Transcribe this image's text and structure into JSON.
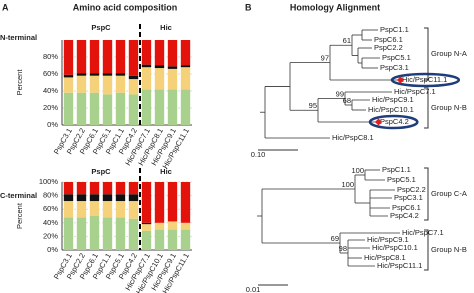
{
  "panel_a": {
    "label": "A",
    "title": "Amino acid composition",
    "charts": [
      {
        "type": "bar",
        "stacked": true,
        "row_label": "N-terminal",
        "y_label": "Percent",
        "groups": [
          "PspC",
          "Hic"
        ],
        "categories": [
          "PspC3.1",
          "PspC2.2",
          "PspC6.1",
          "PspC5.1",
          "PspC1.1",
          "PspC4.2",
          "Hic/PspC7.1",
          "Hic/PspC8.1",
          "Hic/PspC9.1",
          "Hic/PspC11.1"
        ],
        "series": [
          {
            "color": "#a9d18e",
            "values": [
              38,
              38,
              38,
              36,
              38,
              36,
              42,
              42,
              42,
              42
            ]
          },
          {
            "color": "#f5d27a",
            "values": [
              18,
              20,
              20,
              22,
              20,
              18,
              26,
              25,
              24,
              26
            ]
          },
          {
            "color": "#111111",
            "values": [
              3,
              3,
              3,
              3,
              3,
              4,
              3,
              3,
              3,
              2
            ]
          },
          {
            "color": "#e3120b",
            "values": [
              41,
              39,
              39,
              39,
              39,
              42,
              29,
              30,
              31,
              30
            ]
          }
        ],
        "ylim": [
          0,
          100
        ],
        "yticks": [
          {
            "value": 0,
            "label": "0%"
          },
          {
            "value": 20,
            "label": "20%"
          },
          {
            "value": 40,
            "label": "40%"
          },
          {
            "value": 60,
            "label": "60%"
          },
          {
            "value": 80,
            "label": "80%"
          }
        ]
      },
      {
        "type": "bar",
        "stacked": true,
        "row_label": "C-terminal",
        "y_label": "Percent",
        "groups": [
          "PspC",
          "Hic"
        ],
        "categories": [
          "PspC3.1",
          "PspC2.2",
          "PspC6.1",
          "PspC1.1",
          "PspC5.1",
          "PspC4.2",
          "Hic/PspC7.1",
          "Hic/PspC10.1",
          "Hic/PspC9.1",
          "Hic/PspC11.1"
        ],
        "series": [
          {
            "color": "#a9d18e",
            "values": [
              48,
              48,
              50,
              48,
              48,
              46,
              28,
              30,
              30,
              30
            ]
          },
          {
            "color": "#f5d27a",
            "values": [
              24,
              24,
              22,
              24,
              24,
              26,
              10,
              10,
              12,
              10
            ]
          },
          {
            "color": "#111111",
            "values": [
              10,
              10,
              10,
              10,
              10,
              10,
              2,
              0,
              0,
              0
            ]
          },
          {
            "color": "#e3120b",
            "values": [
              18,
              18,
              18,
              18,
              18,
              18,
              60,
              60,
              58,
              60
            ]
          }
        ],
        "ylim": [
          0,
          100
        ],
        "yticks": [
          {
            "value": 0,
            "label": "0%"
          },
          {
            "value": 20,
            "label": "20%"
          },
          {
            "value": 40,
            "label": "40%"
          },
          {
            "value": 60,
            "label": "60%"
          },
          {
            "value": 80,
            "label": "80%"
          },
          {
            "value": 100,
            "label": "100%"
          }
        ]
      }
    ]
  },
  "panel_b": {
    "label": "B",
    "title": "Homology Alignment",
    "trees": [
      {
        "leaves": [
          {
            "name": "PspC1.1",
            "color": "#e02020"
          },
          {
            "name": "PspC6.1",
            "color": "#e02020"
          },
          {
            "name": "PspC2.2",
            "color": "#e02020"
          },
          {
            "name": "PspC5.1",
            "color": "#e02020"
          },
          {
            "name": "PspC3.1",
            "color": "#e02020"
          },
          {
            "name": "Hic/PspC11.1",
            "color": "#1f2fa8"
          },
          {
            "name": "Hic/PspC7.1",
            "color": "#1f2fa8"
          },
          {
            "name": "Hic/PspC9.1",
            "color": "#1f2fa8"
          },
          {
            "name": "Hic/PspC10.1",
            "color": "#1f2fa8"
          },
          {
            "name": "PspC4.2",
            "color": "#e02020"
          },
          {
            "name": "Hic/PspC8.1",
            "color": "#1f2fa8"
          }
        ],
        "bootstrap": [
          97,
          95,
          61,
          99,
          68
        ],
        "groups": [
          "Group N-A",
          "Group N-B"
        ],
        "scale": "0.10"
      },
      {
        "leaves": [
          {
            "name": "PspC1.1",
            "color": "#e02020"
          },
          {
            "name": "PspC5.1",
            "color": "#e02020"
          },
          {
            "name": "PspC2.2",
            "color": "#e02020"
          },
          {
            "name": "PspC3.1",
            "color": "#e02020"
          },
          {
            "name": "PspC6.1",
            "color": "#e02020"
          },
          {
            "name": "PspC4.2",
            "color": "#e02020"
          },
          {
            "name": "Hic/PspC7.1",
            "color": "#1f2fa8"
          },
          {
            "name": "Hic/PspC9.1",
            "color": "#1f2fa8"
          },
          {
            "name": "Hic/PspC10.1",
            "color": "#1f2fa8"
          },
          {
            "name": "Hic/PspC8.1",
            "color": "#1f2fa8"
          },
          {
            "name": "Hic/PspC11.1",
            "color": "#1f2fa8"
          }
        ],
        "bootstrap": [
          100,
          69,
          100,
          98
        ],
        "groups": [
          "Group C-A",
          "Group N-B"
        ],
        "scale": "0.01"
      }
    ]
  }
}
